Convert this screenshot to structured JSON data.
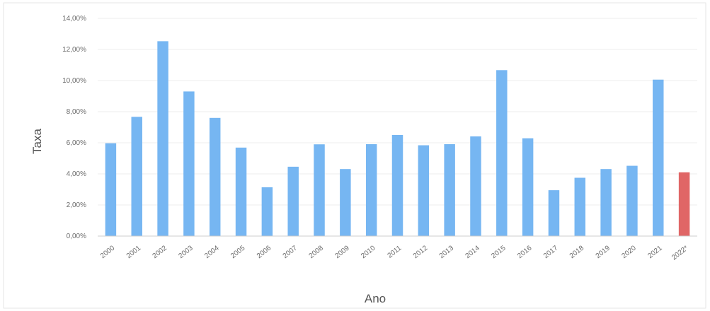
{
  "chart_data": {
    "type": "bar",
    "xlabel": "Ano",
    "ylabel": "Taxa",
    "ylim": [
      0,
      14
    ],
    "yticks": [
      "0,00%",
      "2,00%",
      "4,00%",
      "6,00%",
      "8,00%",
      "10,00%",
      "12,00%",
      "14,00%"
    ],
    "grid": true,
    "categories": [
      "2000",
      "2001",
      "2002",
      "2003",
      "2004",
      "2005",
      "2006",
      "2007",
      "2008",
      "2009",
      "2010",
      "2011",
      "2012",
      "2013",
      "2014",
      "2015",
      "2016",
      "2017",
      "2018",
      "2019",
      "2020",
      "2021",
      "2022*"
    ],
    "values": [
      5.97,
      7.67,
      12.53,
      9.3,
      7.6,
      5.69,
      3.14,
      4.46,
      5.9,
      4.31,
      5.91,
      6.5,
      5.84,
      5.91,
      6.41,
      10.67,
      6.29,
      2.95,
      3.75,
      4.31,
      4.52,
      10.06,
      4.1
    ],
    "colors": {
      "default": "#76b6f2",
      "highlight": "#e06666"
    },
    "highlight_categories": [
      "2022*"
    ]
  }
}
